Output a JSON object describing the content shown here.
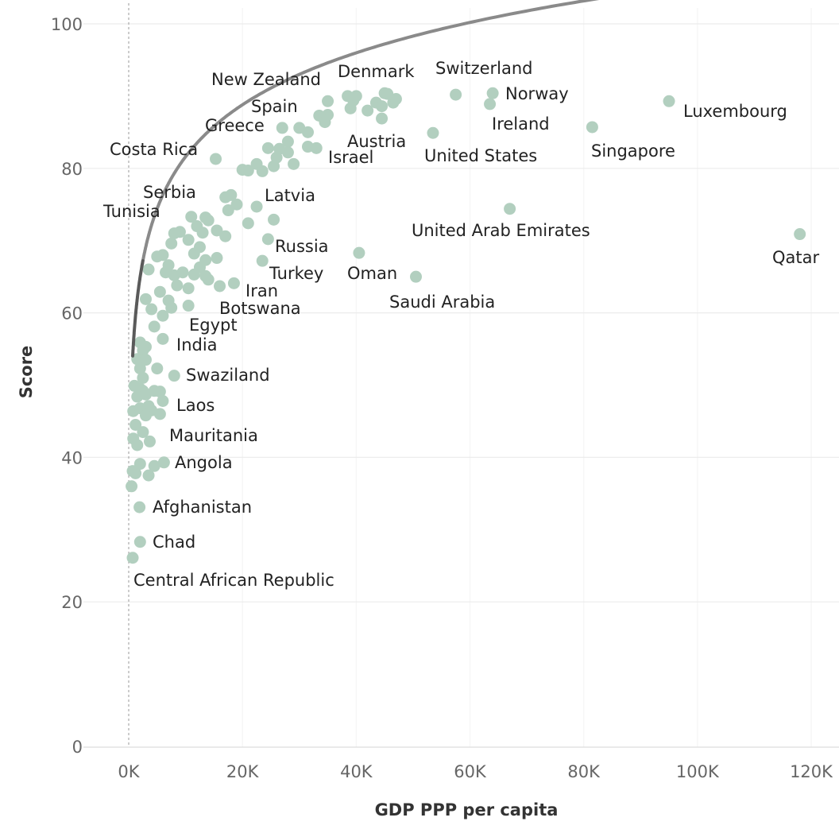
{
  "chart_data": {
    "type": "scatter",
    "xlabel": "GDP PPP per capita",
    "ylabel": "Score",
    "xlim": [
      -6000,
      125000
    ],
    "ylim": [
      -2,
      102
    ],
    "x_ticks": [
      {
        "value": 0,
        "label": "0K"
      },
      {
        "value": 20000,
        "label": "20K"
      },
      {
        "value": 40000,
        "label": "40K"
      },
      {
        "value": 60000,
        "label": "60K"
      },
      {
        "value": 80000,
        "label": "80K"
      },
      {
        "value": 100000,
        "label": "100K"
      },
      {
        "value": 120000,
        "label": "120K"
      }
    ],
    "y_ticks": [
      {
        "value": 0,
        "label": "0"
      },
      {
        "value": 20,
        "label": "20"
      },
      {
        "value": 40,
        "label": "40"
      },
      {
        "value": 60,
        "label": "60"
      },
      {
        "value": 80,
        "label": "80"
      },
      {
        "value": 100,
        "label": "100"
      }
    ],
    "grid": true,
    "point_color": "#b2cfbf",
    "trend_color": "#8a8a8a",
    "trend_color_low": "#5a5a5a",
    "trend": {
      "type": "logarithmic",
      "a": -13.9,
      "b": 10.37,
      "x_start": 700,
      "x_end": 125000
    },
    "labeled_points": [
      {
        "name": "Switzerland",
        "x": 57500,
        "y": 90.2
      },
      {
        "name": "Norway",
        "x": 64000,
        "y": 90.4
      },
      {
        "name": "Denmark",
        "x": 45500,
        "y": 90.3
      },
      {
        "name": "New Zealand",
        "x": 35000,
        "y": 89.3
      },
      {
        "name": "Spain",
        "x": 27000,
        "y": 85.6
      },
      {
        "name": "Greece",
        "x": 26500,
        "y": 82.7
      },
      {
        "name": "Austria",
        "x": 44500,
        "y": 86.9
      },
      {
        "name": "Israel",
        "x": 33000,
        "y": 82.8
      },
      {
        "name": "Ireland",
        "x": 63500,
        "y": 88.9
      },
      {
        "name": "United States",
        "x": 53500,
        "y": 84.9
      },
      {
        "name": "Luxembourg",
        "x": 95000,
        "y": 89.3
      },
      {
        "name": "Singapore",
        "x": 81500,
        "y": 85.7
      },
      {
        "name": "Costa Rica",
        "x": 15300,
        "y": 81.3
      },
      {
        "name": "Serbia",
        "x": 13500,
        "y": 73.2
      },
      {
        "name": "Tunisia",
        "x": 11000,
        "y": 73.3
      },
      {
        "name": "Latvia",
        "x": 22500,
        "y": 74.7
      },
      {
        "name": "United Arab Emirates",
        "x": 67000,
        "y": 74.4
      },
      {
        "name": "Russia",
        "x": 24500,
        "y": 70.2
      },
      {
        "name": "Turkey",
        "x": 23500,
        "y": 67.2
      },
      {
        "name": "Oman",
        "x": 40500,
        "y": 68.3
      },
      {
        "name": "Iran",
        "x": 18500,
        "y": 64.1
      },
      {
        "name": "Botswana",
        "x": 16000,
        "y": 63.7
      },
      {
        "name": "Saudi Arabia",
        "x": 50500,
        "y": 65.0
      },
      {
        "name": "Qatar",
        "x": 118000,
        "y": 70.9
      },
      {
        "name": "Egypt",
        "x": 10500,
        "y": 61.0
      },
      {
        "name": "India",
        "x": 6000,
        "y": 56.4
      },
      {
        "name": "Swaziland",
        "x": 8000,
        "y": 51.3
      },
      {
        "name": "Laos",
        "x": 6000,
        "y": 47.8
      },
      {
        "name": "Mauritania",
        "x": 3700,
        "y": 42.2
      },
      {
        "name": "Angola",
        "x": 6200,
        "y": 39.3
      },
      {
        "name": "Afghanistan",
        "x": 1900,
        "y": 33.1
      },
      {
        "name": "Chad",
        "x": 2000,
        "y": 28.3
      },
      {
        "name": "Central African Republic",
        "x": 700,
        "y": 26.1
      }
    ],
    "other_points": [
      {
        "x": 43500,
        "y": 89.1
      },
      {
        "x": 44500,
        "y": 88.6
      },
      {
        "x": 46500,
        "y": 89.1
      },
      {
        "x": 47000,
        "y": 89.6
      },
      {
        "x": 38500,
        "y": 90.0
      },
      {
        "x": 39500,
        "y": 89.4
      },
      {
        "x": 40000,
        "y": 90.0
      },
      {
        "x": 45000,
        "y": 90.4
      },
      {
        "x": 42000,
        "y": 88.0
      },
      {
        "x": 39000,
        "y": 88.3
      },
      {
        "x": 35000,
        "y": 87.4
      },
      {
        "x": 33500,
        "y": 87.3
      },
      {
        "x": 34500,
        "y": 86.4
      },
      {
        "x": 30000,
        "y": 85.6
      },
      {
        "x": 31500,
        "y": 85.0
      },
      {
        "x": 28000,
        "y": 83.7
      },
      {
        "x": 29000,
        "y": 80.6
      },
      {
        "x": 25500,
        "y": 80.3
      },
      {
        "x": 24500,
        "y": 82.8
      },
      {
        "x": 22500,
        "y": 80.6
      },
      {
        "x": 21000,
        "y": 79.7
      },
      {
        "x": 20000,
        "y": 79.8
      },
      {
        "x": 23500,
        "y": 79.6
      },
      {
        "x": 26000,
        "y": 81.5
      },
      {
        "x": 28000,
        "y": 82.2
      },
      {
        "x": 31500,
        "y": 83.0
      },
      {
        "x": 17000,
        "y": 76.0
      },
      {
        "x": 18000,
        "y": 76.3
      },
      {
        "x": 19000,
        "y": 75.0
      },
      {
        "x": 21000,
        "y": 72.4
      },
      {
        "x": 17500,
        "y": 74.2
      },
      {
        "x": 25500,
        "y": 72.9
      },
      {
        "x": 14000,
        "y": 72.8
      },
      {
        "x": 13000,
        "y": 71.1
      },
      {
        "x": 12000,
        "y": 72.0
      },
      {
        "x": 10500,
        "y": 70.1
      },
      {
        "x": 9000,
        "y": 71.2
      },
      {
        "x": 8000,
        "y": 71.0
      },
      {
        "x": 7500,
        "y": 69.6
      },
      {
        "x": 15500,
        "y": 71.4
      },
      {
        "x": 17000,
        "y": 70.6
      },
      {
        "x": 11500,
        "y": 68.2
      },
      {
        "x": 12500,
        "y": 69.1
      },
      {
        "x": 13500,
        "y": 67.3
      },
      {
        "x": 15500,
        "y": 67.6
      },
      {
        "x": 5000,
        "y": 67.8
      },
      {
        "x": 6000,
        "y": 68.0
      },
      {
        "x": 7000,
        "y": 66.6
      },
      {
        "x": 8000,
        "y": 65.2
      },
      {
        "x": 9500,
        "y": 65.6
      },
      {
        "x": 11500,
        "y": 65.3
      },
      {
        "x": 12500,
        "y": 66.3
      },
      {
        "x": 13500,
        "y": 65.1
      },
      {
        "x": 14000,
        "y": 64.6
      },
      {
        "x": 3500,
        "y": 66.0
      },
      {
        "x": 6500,
        "y": 65.6
      },
      {
        "x": 8500,
        "y": 63.8
      },
      {
        "x": 10500,
        "y": 63.4
      },
      {
        "x": 5500,
        "y": 62.9
      },
      {
        "x": 3000,
        "y": 61.9
      },
      {
        "x": 7000,
        "y": 61.7
      },
      {
        "x": 4000,
        "y": 60.5
      },
      {
        "x": 6000,
        "y": 59.6
      },
      {
        "x": 7500,
        "y": 60.7
      },
      {
        "x": 4500,
        "y": 58.1
      },
      {
        "x": 2000,
        "y": 55.9
      },
      {
        "x": 3000,
        "y": 55.3
      },
      {
        "x": 2500,
        "y": 54.8
      },
      {
        "x": 1500,
        "y": 53.6
      },
      {
        "x": 3000,
        "y": 53.5
      },
      {
        "x": 2000,
        "y": 52.3
      },
      {
        "x": 5000,
        "y": 52.3
      },
      {
        "x": 2500,
        "y": 51.0
      },
      {
        "x": 1000,
        "y": 49.9
      },
      {
        "x": 2000,
        "y": 49.5
      },
      {
        "x": 2500,
        "y": 49.2
      },
      {
        "x": 3000,
        "y": 48.7
      },
      {
        "x": 5500,
        "y": 49.1
      },
      {
        "x": 1500,
        "y": 48.4
      },
      {
        "x": 4500,
        "y": 49.2
      },
      {
        "x": 800,
        "y": 46.4
      },
      {
        "x": 2000,
        "y": 46.8
      },
      {
        "x": 3500,
        "y": 47.1
      },
      {
        "x": 4000,
        "y": 46.5
      },
      {
        "x": 3000,
        "y": 45.8
      },
      {
        "x": 5500,
        "y": 46.0
      },
      {
        "x": 1200,
        "y": 44.5
      },
      {
        "x": 2500,
        "y": 43.5
      },
      {
        "x": 800,
        "y": 42.6
      },
      {
        "x": 1500,
        "y": 41.7
      },
      {
        "x": 2000,
        "y": 39.1
      },
      {
        "x": 1200,
        "y": 37.8
      },
      {
        "x": 3500,
        "y": 37.5
      },
      {
        "x": 4500,
        "y": 38.8
      },
      {
        "x": 700,
        "y": 38.1
      },
      {
        "x": 500,
        "y": 36.0
      }
    ]
  }
}
